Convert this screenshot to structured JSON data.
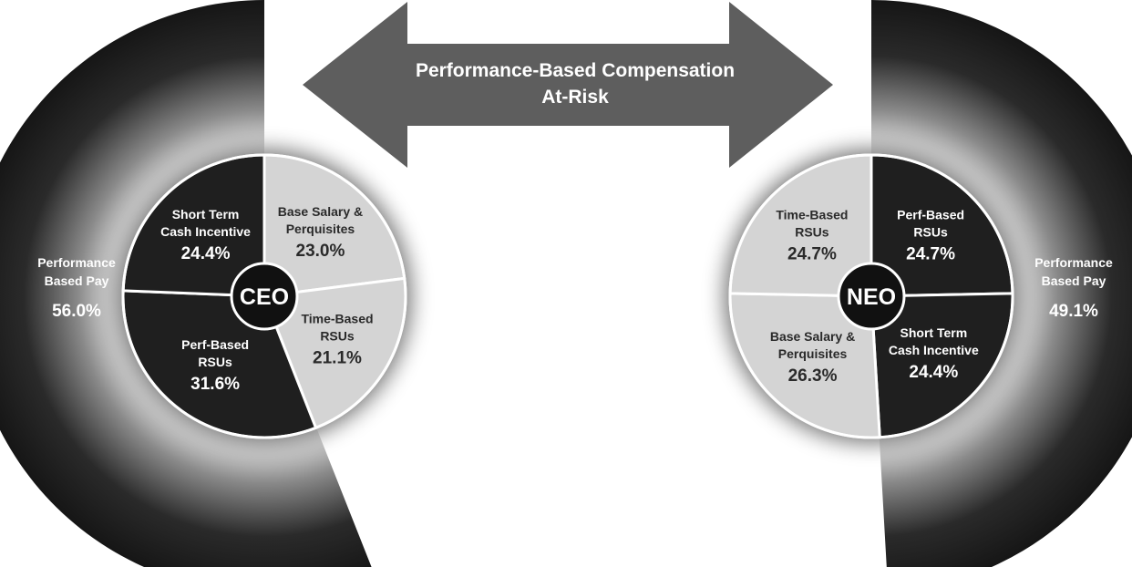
{
  "banner": {
    "line1": "Performance-Based Compensation",
    "line2": "At-Risk"
  },
  "colors": {
    "dark": "#1f1f1f",
    "light": "#d4d4d4",
    "arrow": "#5e5e5e",
    "text_on_dark": "#ffffff",
    "text_on_light": "#2a2a2a"
  },
  "chart_data": [
    {
      "type": "pie",
      "center_label": "CEO",
      "slices": [
        {
          "label": [
            "Base Salary &",
            "Perquisites"
          ],
          "value": 23.0,
          "value_label": "23.0%",
          "shade": "light"
        },
        {
          "label": [
            "Time-Based",
            "RSUs"
          ],
          "value": 21.1,
          "value_label": "21.1%",
          "shade": "light"
        },
        {
          "label": [
            "Perf-Based",
            "RSUs"
          ],
          "value": 31.6,
          "value_label": "31.6%",
          "shade": "dark"
        },
        {
          "label": [
            "Short Term",
            "Cash Incentive"
          ],
          "value": 24.4,
          "value_label": "24.4%",
          "shade": "dark"
        }
      ],
      "performance_ring": {
        "label": [
          "Performance",
          "Based Pay"
        ],
        "value": 56.0,
        "value_label": "56.0%"
      }
    },
    {
      "type": "pie",
      "center_label": "NEO",
      "slices": [
        {
          "label": [
            "Perf-Based",
            "RSUs"
          ],
          "value": 24.7,
          "value_label": "24.7%",
          "shade": "dark"
        },
        {
          "label": [
            "Short Term",
            "Cash Incentive"
          ],
          "value": 24.4,
          "value_label": "24.4%",
          "shade": "dark"
        },
        {
          "label": [
            "Base Salary &",
            "Perquisites"
          ],
          "value": 26.3,
          "value_label": "26.3%",
          "shade": "light"
        },
        {
          "label": [
            "Time-Based",
            "RSUs"
          ],
          "value": 24.7,
          "value_label": "24.7%",
          "shade": "light"
        }
      ],
      "performance_ring": {
        "label": [
          "Performance",
          "Based Pay"
        ],
        "value": 49.1,
        "value_label": "49.1%"
      }
    }
  ]
}
